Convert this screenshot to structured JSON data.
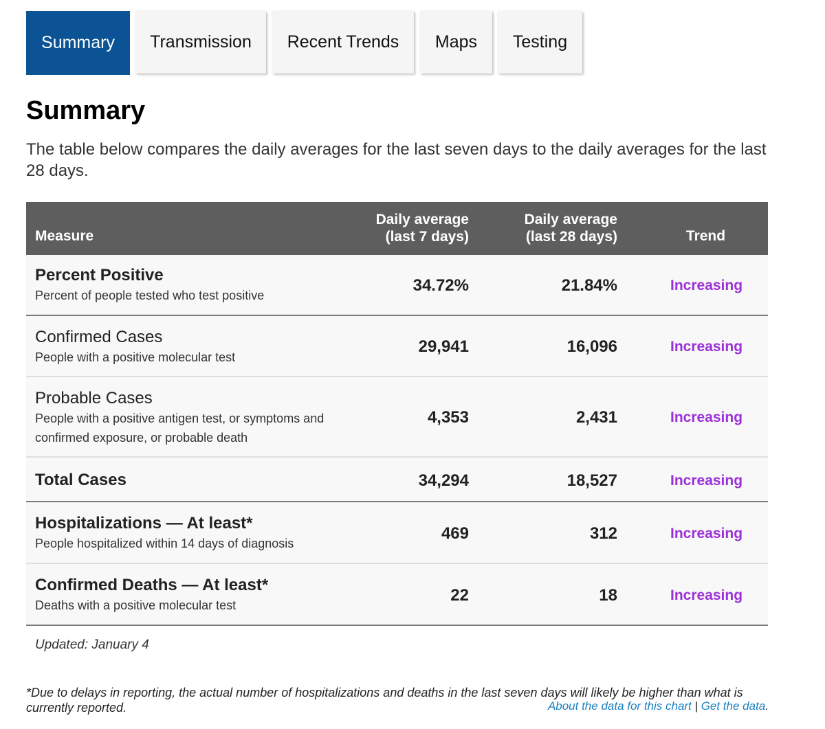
{
  "tabs": [
    {
      "label": "Summary",
      "active": true
    },
    {
      "label": "Transmission",
      "active": false
    },
    {
      "label": "Recent Trends",
      "active": false
    },
    {
      "label": "Maps",
      "active": false
    },
    {
      "label": "Testing",
      "active": false
    }
  ],
  "heading": "Summary",
  "intro": "The table below compares the daily averages for the last seven days to the daily averages for the last 28 days.",
  "table": {
    "headers": {
      "measure": "Measure",
      "avg7_line1": "Daily average",
      "avg7_line2": "(last 7 days)",
      "avg28_line1": "Daily average",
      "avg28_line2": "(last 28 days)",
      "trend": "Trend"
    },
    "rows": [
      {
        "name": "Percent Positive",
        "desc": "Percent of people tested who test positive",
        "avg7": "34.72%",
        "avg28": "21.84%",
        "trend": "Increasing"
      },
      {
        "name": "Confirmed Cases",
        "desc": "People with a positive molecular test",
        "avg7": "29,941",
        "avg28": "16,096",
        "trend": "Increasing"
      },
      {
        "name": "Probable Cases",
        "desc": "People with a positive antigen test, or symptoms and confirmed exposure, or probable death",
        "avg7": "4,353",
        "avg28": "2,431",
        "trend": "Increasing"
      },
      {
        "name": "Total Cases",
        "desc": "",
        "avg7": "34,294",
        "avg28": "18,527",
        "trend": "Increasing"
      },
      {
        "name": "Hospitalizations — At least*",
        "desc": "People hospitalized within 14 days of diagnosis",
        "avg7": "469",
        "avg28": "312",
        "trend": "Increasing"
      },
      {
        "name": "Confirmed Deaths — At least*",
        "desc": "Deaths with a positive molecular test",
        "avg7": "22",
        "avg28": "18",
        "trend": "Increasing"
      }
    ]
  },
  "updated": "Updated: January 4",
  "footnote": "*Due to delays in reporting, the actual number of hospitalizations and deaths in the last seven days will likely be higher than what is currently reported.",
  "links": {
    "about": "About the data for this chart",
    "separator": "|",
    "get": "Get the data",
    "end": "."
  },
  "colors": {
    "tab_active": "#0b5394",
    "header_bg": "#5e5e5e",
    "trend_increasing": "#9b30d9",
    "link": "#1a7fc1"
  }
}
